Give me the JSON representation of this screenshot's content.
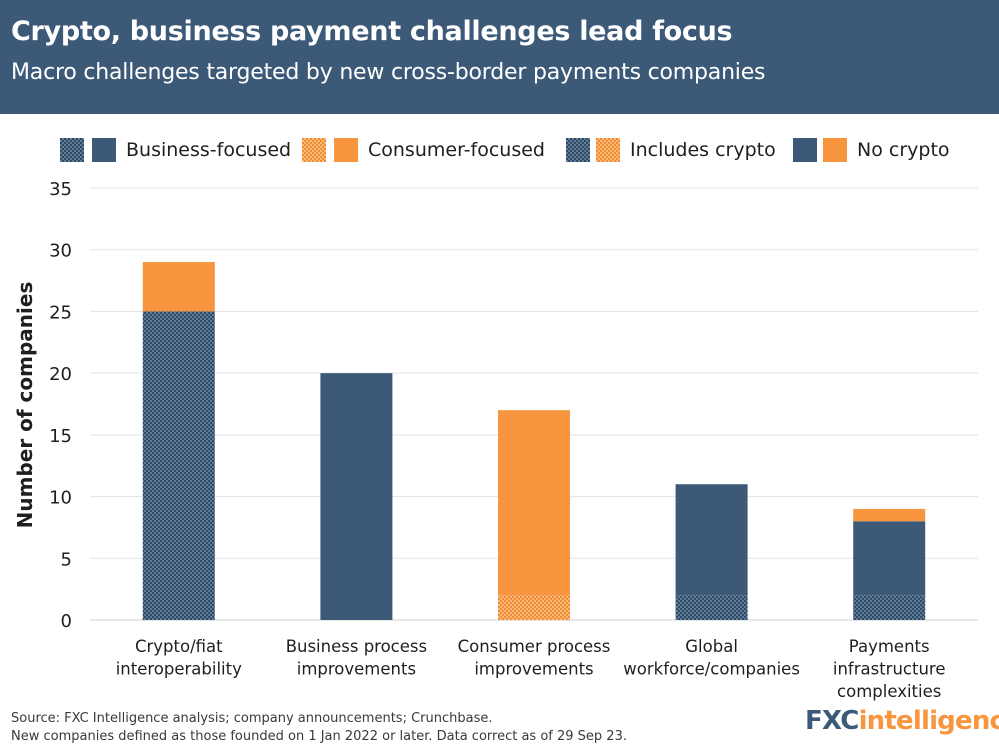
{
  "header": {
    "title": "Crypto, business payment challenges lead focus",
    "subtitle": "Macro challenges targeted by new cross-border payments companies"
  },
  "legend": {
    "business": "Business-focused",
    "consumer": "Consumer-focused",
    "includes_crypto": "Includes crypto",
    "no_crypto": "No crypto"
  },
  "colors": {
    "business": "#3c5a78",
    "consumer": "#f7963e",
    "grid": "#e3e3e3",
    "header_bg": "#3c5a78"
  },
  "chart_data": {
    "type": "bar",
    "stacked": true,
    "categories": [
      "Crypto/fiat interoperability",
      "Business process improvements",
      "Consumer process improvements",
      "Global workforce/companies",
      "Payments infrastructure complexities"
    ],
    "category_lines": [
      [
        "Crypto/fiat",
        "interoperability"
      ],
      [
        "Business process",
        "improvements"
      ],
      [
        "Consumer process",
        "improvements"
      ],
      [
        "Global",
        "workforce/companies"
      ],
      [
        "Payments",
        "infrastructure",
        "complexities"
      ]
    ],
    "series": [
      {
        "focus": "business",
        "crypto": true,
        "values": [
          25,
          0,
          0,
          2,
          2
        ]
      },
      {
        "focus": "consumer",
        "crypto": true,
        "values": [
          0,
          0,
          2,
          0,
          0
        ]
      },
      {
        "focus": "business",
        "crypto": false,
        "values": [
          0,
          20,
          0,
          9,
          6
        ]
      },
      {
        "focus": "consumer",
        "crypto": false,
        "values": [
          4,
          0,
          15,
          0,
          1
        ]
      }
    ],
    "ylabel": "Number of companies",
    "xlabel": "",
    "ylim": [
      0,
      35
    ],
    "yticks": [
      0,
      5,
      10,
      15,
      20,
      25,
      30,
      35
    ],
    "grid": true,
    "legend_position": "top"
  },
  "footer": {
    "source": "Source: FXC Intelligence analysis; company announcements; Crunchbase.",
    "note": "New companies defined as those founded on 1 Jan 2022 or later. Data correct as of 29 Sep 23."
  },
  "logo": {
    "part1": "FXC",
    "part2": "intelligence"
  }
}
